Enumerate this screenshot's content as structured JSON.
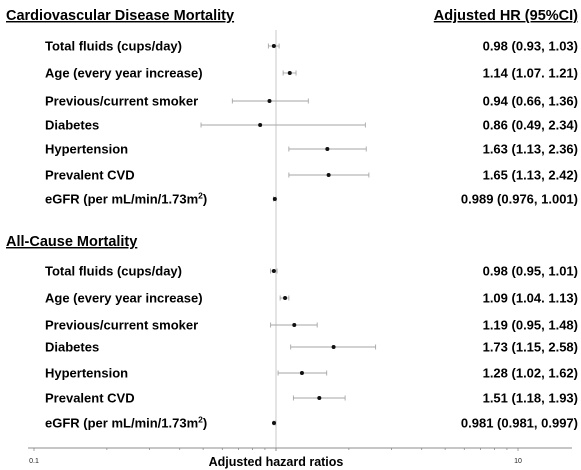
{
  "chart_data": {
    "type": "forest",
    "x_scale": "log",
    "xlim": [
      0.1,
      10
    ],
    "reference_line": 1,
    "xticks": [
      "0.1",
      "1",
      "10"
    ],
    "xlabel": "Adjusted hazard ratios",
    "hr_header": "Adjusted HR (95%CI)",
    "groups": [
      {
        "title": "Cardiovascular Disease Mortality",
        "rows": [
          {
            "label": "Total fluids (cups/day)",
            "hr": 0.98,
            "lo": 0.93,
            "hi": 1.03,
            "text": "0.98 (0.93, 1.03)"
          },
          {
            "label": "Age (every year increase)",
            "hr": 1.14,
            "lo": 1.07,
            "hi": 1.21,
            "text": "1.14 (1.07. 1.21)"
          },
          {
            "label": "Previous/current smoker",
            "hr": 0.94,
            "lo": 0.66,
            "hi": 1.36,
            "text": "0.94 (0.66, 1.36)"
          },
          {
            "label": "Diabetes",
            "hr": 0.86,
            "lo": 0.49,
            "hi": 2.34,
            "text": "0.86 (0.49, 2.34)"
          },
          {
            "label": "Hypertension",
            "hr": 1.63,
            "lo": 1.13,
            "hi": 2.36,
            "text": "1.63 (1.13, 2.36)"
          },
          {
            "label": "Prevalent CVD",
            "hr": 1.65,
            "lo": 1.13,
            "hi": 2.42,
            "text": "1.65 (1.13, 2.42)"
          },
          {
            "label": "eGFR (per mL/min/1.73m",
            "sup": "2",
            "label_end": ")",
            "hr": 0.989,
            "lo": 0.976,
            "hi": 1.001,
            "text": "0.989 (0.976, 1.001)"
          }
        ]
      },
      {
        "title": "All-Cause Mortality",
        "rows": [
          {
            "label": "Total fluids (cups/day)",
            "hr": 0.98,
            "lo": 0.95,
            "hi": 1.01,
            "text": "0.98 (0.95, 1.01)"
          },
          {
            "label": "Age (every year increase)",
            "hr": 1.09,
            "lo": 1.04,
            "hi": 1.13,
            "text": "1.09 (1.04. 1.13)"
          },
          {
            "label": "Previous/current smoker",
            "hr": 1.19,
            "lo": 0.95,
            "hi": 1.48,
            "text": "1.19 (0.95, 1.48)"
          },
          {
            "label": "Diabetes",
            "hr": 1.73,
            "lo": 1.15,
            "hi": 2.58,
            "text": "1.73 (1.15, 2.58)"
          },
          {
            "label": "Hypertension",
            "hr": 1.28,
            "lo": 1.02,
            "hi": 1.62,
            "text": "1.28 (1.02, 1.62)"
          },
          {
            "label": "Prevalent CVD",
            "hr": 1.51,
            "lo": 1.18,
            "hi": 1.93,
            "text": "1.51 (1.18, 1.93)"
          },
          {
            "label": "eGFR (per mL/min/1.73m",
            "sup": "2",
            "label_end": ")",
            "hr": 0.981,
            "lo": 0.981,
            "hi": 0.997,
            "text": "0.981 (0.981, 0.997)"
          }
        ]
      }
    ]
  },
  "colors": {
    "point": "#111111",
    "ci_line": "#a6a6a6",
    "ref_line": "#c8c8c8",
    "axis": "#8c8c8c",
    "text": "#000000"
  }
}
